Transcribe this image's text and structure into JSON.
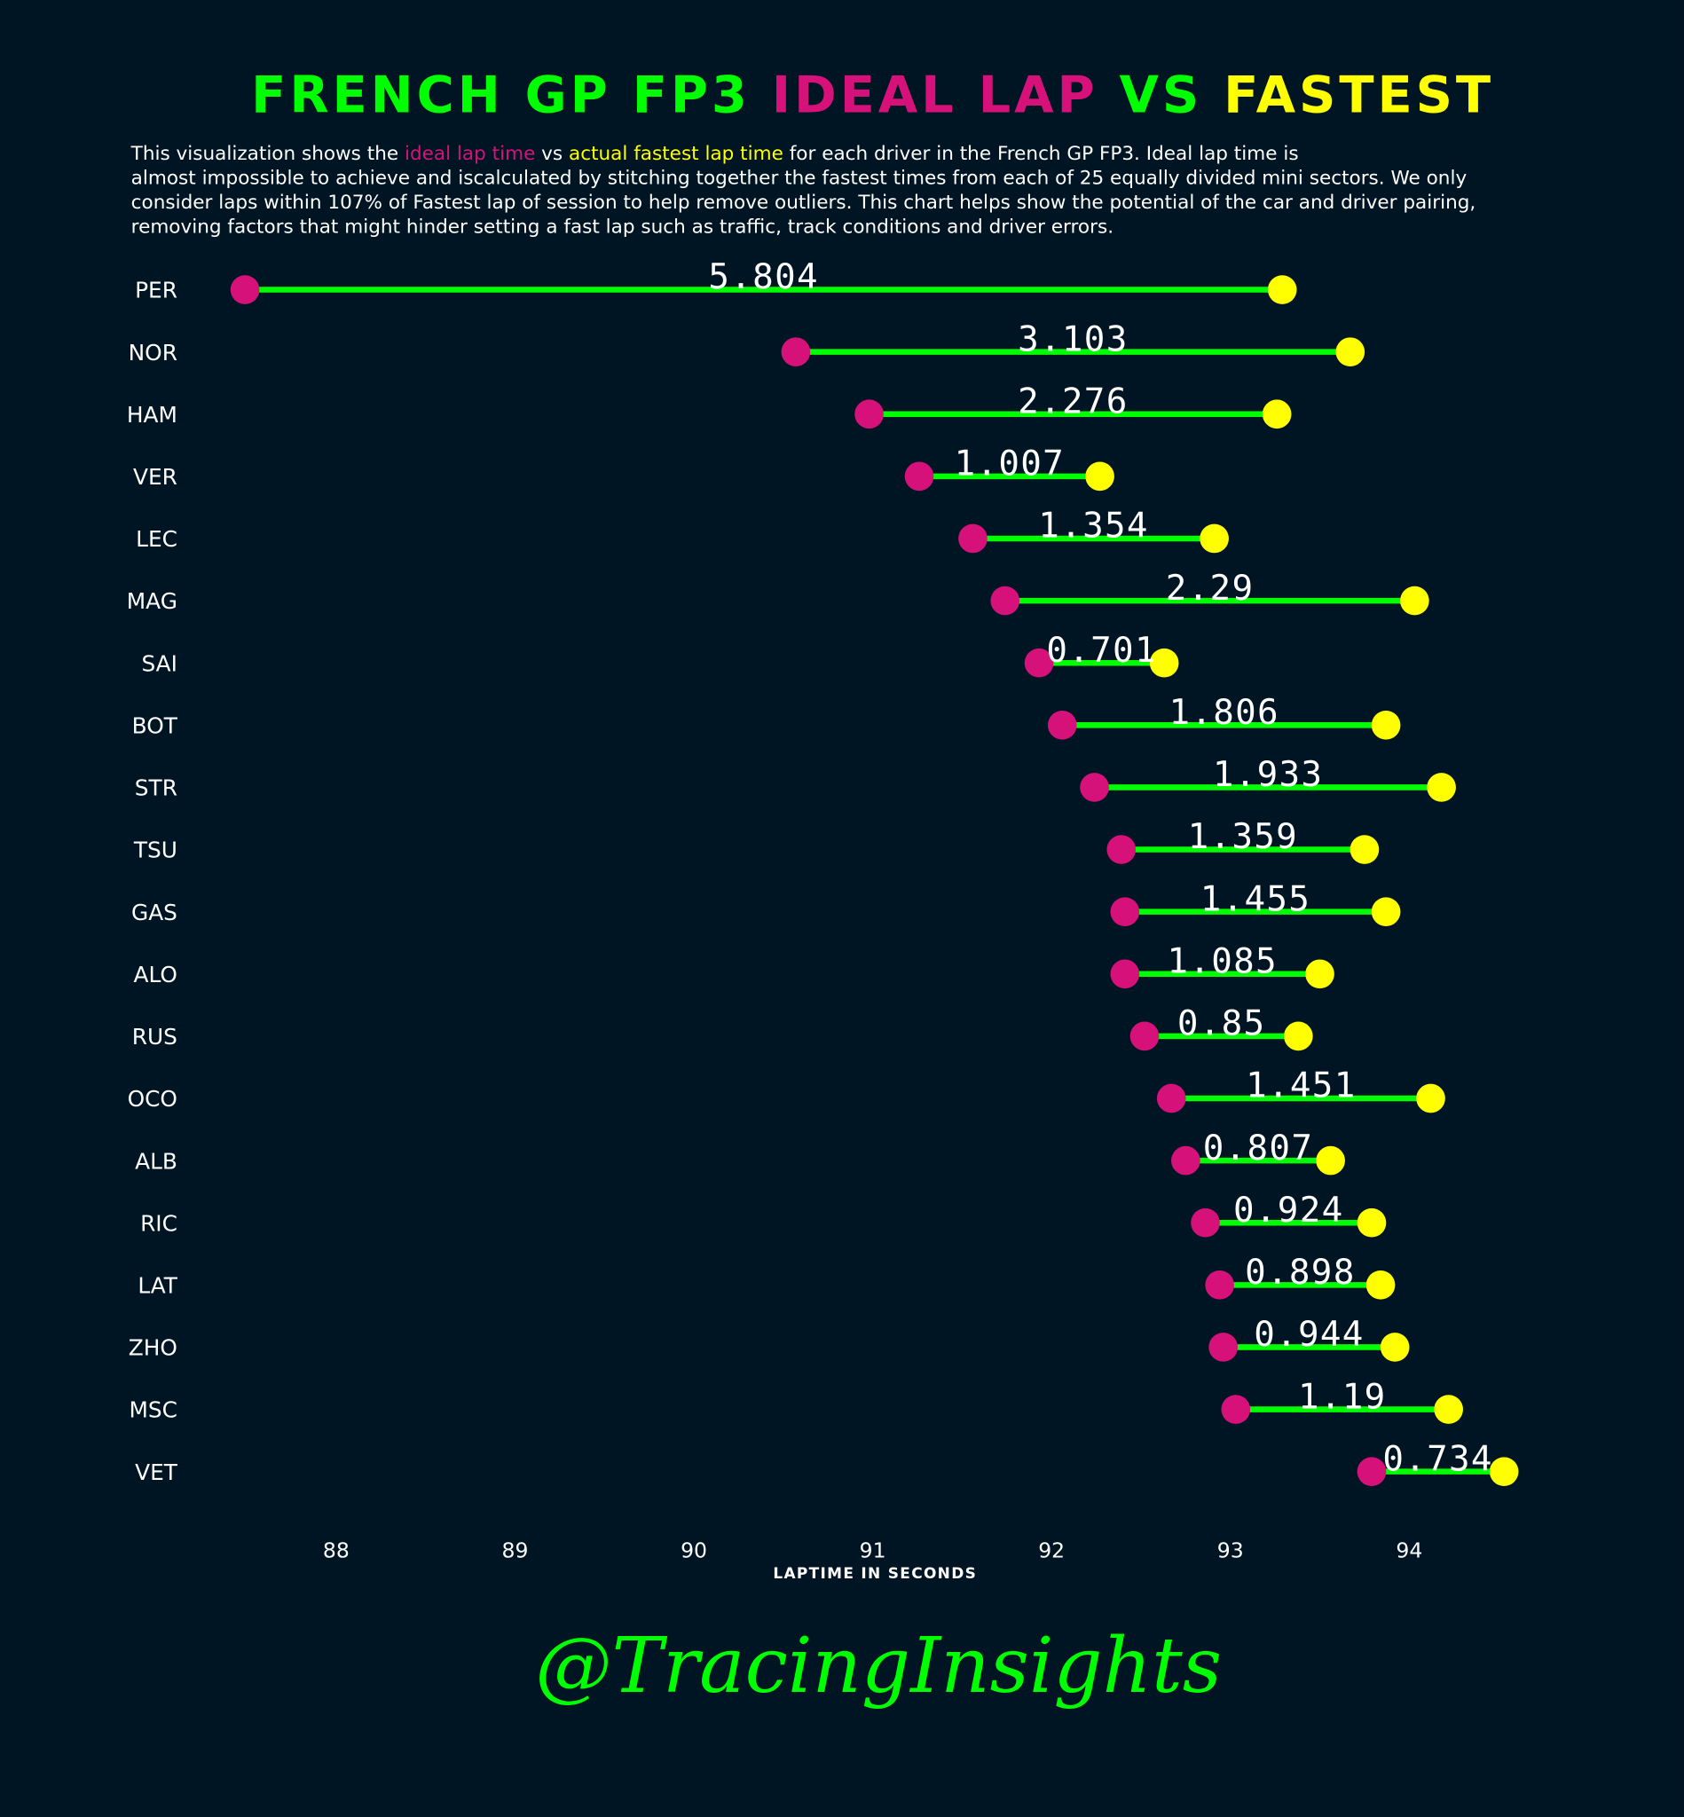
{
  "title": {
    "part1": "FRENCH GP FP3 ",
    "part2": "IDEAL LAP",
    "part3": " VS ",
    "part4": "FASTEST"
  },
  "description": {
    "l1a": "This visualization shows the ",
    "l1b": "ideal lap time",
    "l1c": " vs ",
    "l1d": "actual fastest lap time",
    "l1e": " for each driver in the French GP FP3. Ideal lap time is",
    "l2": "almost impossible to achieve and iscalculated by stitching together the fastest times from each of 25 equally divided mini sectors. We only",
    "l3": "consider laps within 107% of Fastest lap of session to help remove outliers. This chart helps show the potential of the car and driver pairing,",
    "l4": "removing factors that might hinder setting a fast lap such as traffic, track conditions and driver errors."
  },
  "colors": {
    "background": "#001524",
    "line": "#00ff00",
    "ideal": "#d6127a",
    "fastest": "#ffff00",
    "text": "#ffffff"
  },
  "watermark": "@TracingInsights",
  "chart_data": {
    "type": "dumbbell",
    "title": "FRENCH GP FP3 IDEAL LAP VS FASTEST",
    "xlabel": "LAPTIME IN SECONDS",
    "ylabel": "",
    "xlim": [
      87.48,
      94.6
    ],
    "xticks": [
      88,
      89,
      90,
      91,
      92,
      93,
      94
    ],
    "grid": false,
    "categories": [
      "PER",
      "NOR",
      "HAM",
      "VER",
      "LEC",
      "MAG",
      "SAI",
      "BOT",
      "STR",
      "TSU",
      "GAS",
      "ALO",
      "RUS",
      "OCO",
      "ALB",
      "RIC",
      "LAT",
      "ZHO",
      "MSC",
      "VET"
    ],
    "series": [
      {
        "name": "ideal lap time",
        "values": [
          87.49,
          90.57,
          90.98,
          91.26,
          91.56,
          91.74,
          91.93,
          92.06,
          92.24,
          92.39,
          92.41,
          92.41,
          92.52,
          92.67,
          92.75,
          92.86,
          92.94,
          92.96,
          93.03,
          93.79
        ]
      },
      {
        "name": "actual fastest lap time",
        "values": [
          93.29,
          93.67,
          93.26,
          92.27,
          92.91,
          94.03,
          92.63,
          93.87,
          94.18,
          93.75,
          93.87,
          93.5,
          93.38,
          94.12,
          93.56,
          93.79,
          93.84,
          93.92,
          94.22,
          94.53
        ]
      }
    ],
    "diff_labels": [
      "5.804",
      "3.103",
      "2.276",
      "1.007",
      "1.354",
      "2.29",
      "0.701",
      "1.806",
      "1.933",
      "1.359",
      "1.455",
      "1.085",
      "0.85",
      "1.451",
      "0.807",
      "0.924",
      "0.898",
      "0.944",
      "1.19",
      "0.734"
    ]
  }
}
